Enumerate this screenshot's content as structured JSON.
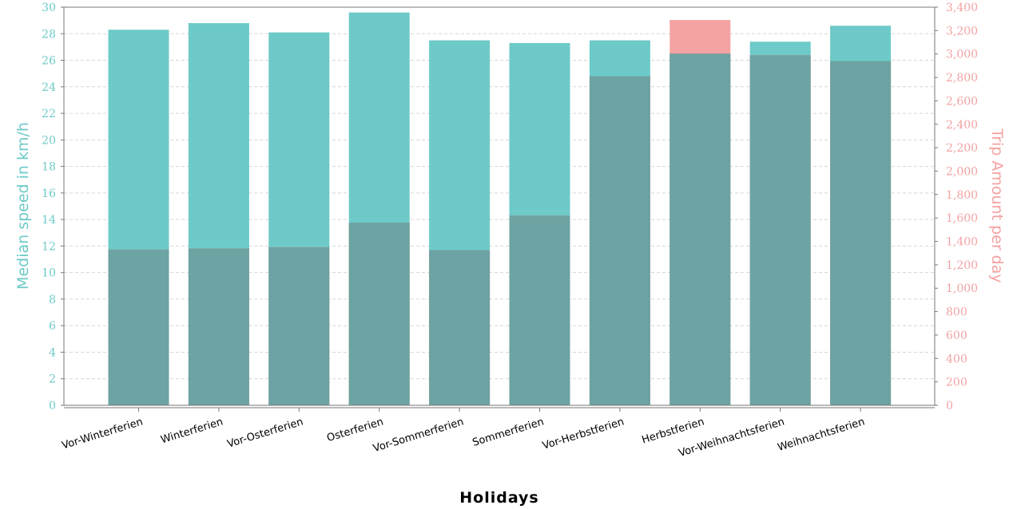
{
  "chart_data": {
    "type": "bar",
    "xlabel": "Holidays",
    "categories": [
      "Vor-Winterferien",
      "Winterferien",
      "Vor-Osterferien",
      "Osterferien",
      "Vor-Sommerferien",
      "Sommerferien",
      "Vor-Herbstferien",
      "Herbstferien",
      "Vor-Weihnachtsferien",
      "Weihnachtsferien"
    ],
    "y_left": {
      "label": "Median speed in km/h",
      "ylim": [
        0,
        30
      ],
      "ticks": [
        0,
        2,
        4,
        6,
        8,
        10,
        12,
        14,
        16,
        18,
        20,
        22,
        24,
        26,
        28,
        30
      ],
      "color": "#6dcac8"
    },
    "y_right": {
      "label": "Trip Amount per day",
      "ylim": [
        0,
        3400
      ],
      "ticks": [
        0,
        200,
        400,
        600,
        800,
        1000,
        1200,
        1400,
        1600,
        1800,
        2000,
        2200,
        2400,
        2600,
        2800,
        3000,
        3200,
        3400
      ],
      "tick_labels": [
        "0",
        "200",
        "400",
        "600",
        "800",
        "1,000",
        "1,200",
        "1,400",
        "1,600",
        "1,800",
        "2,000",
        "2,200",
        "2,400",
        "2,600",
        "2,800",
        "3,000",
        "3,200",
        "3,400"
      ],
      "color": "#f4a2a2"
    },
    "series": [
      {
        "axis": "left",
        "color": "#6dcac8",
        "values": [
          28.3,
          28.8,
          28.1,
          29.6,
          27.5,
          27.3,
          27.5,
          26.5,
          27.4,
          28.6
        ]
      },
      {
        "axis": "right",
        "color": "#f4a2a2",
        "values": [
          1330,
          1340,
          1350,
          1560,
          1325,
          1620,
          2810,
          3290,
          2990,
          2940
        ]
      }
    ],
    "overlap_color": "#6da3a2",
    "grid": true
  }
}
